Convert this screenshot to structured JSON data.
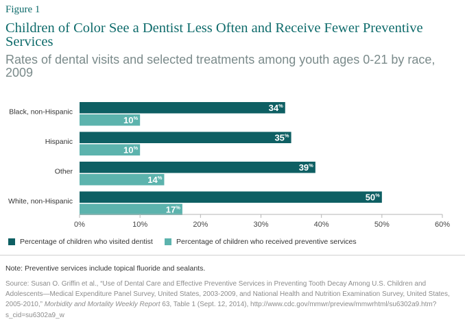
{
  "figure_label": "Figure 1",
  "title": "Children of Color See a Dentist Less Often and Receive Fewer Preventive Services",
  "subtitle": "Rates of dental visits and selected treatments among youth ages 0-21 by race, 2009",
  "colors": {
    "dark": "#0e5f63",
    "light": "#5cb3ad"
  },
  "chart_data": {
    "type": "bar",
    "orientation": "horizontal",
    "categories": [
      "Black, non-Hispanic",
      "Hispanic",
      "Other",
      "White, non-Hispanic"
    ],
    "series": [
      {
        "name": "Percentage of children who visited dentist",
        "values": [
          34,
          35,
          39,
          50
        ],
        "color": "#0e5f63"
      },
      {
        "name": "Percentage of children who received preventive services",
        "values": [
          10,
          10,
          14,
          17
        ],
        "color": "#5cb3ad"
      }
    ],
    "value_suffix": "%",
    "xlim": [
      0,
      60
    ],
    "xticks": [
      0,
      10,
      20,
      30,
      40,
      50,
      60
    ],
    "xtick_labels": [
      "0%",
      "10%",
      "20%",
      "30%",
      "40%",
      "50%",
      "60%"
    ],
    "grid": false,
    "legend_position": "bottom"
  },
  "note": "Note: Preventive services include topical fluoride and sealants.",
  "source": {
    "part1": "Source: Susan O. Griffin et al., “Use of Dental Care and Effective Preventive Services in Preventing Tooth Decay Among U.S. Children and Adolescents—Medical Expenditure Panel Survey, United States, 2003-2009, and National Health and Nutrition Examination Survey, United States, 2005-2010,”",
    "journal": "Morbidity and Mortality Weekly Report",
    "part2": "63, Table 1 (Sept. 12, 2014), http://www.cdc.gov/mmwr/preview/mmwrhtml/su6302a9.htm?s_cid=su6302a9_w"
  }
}
